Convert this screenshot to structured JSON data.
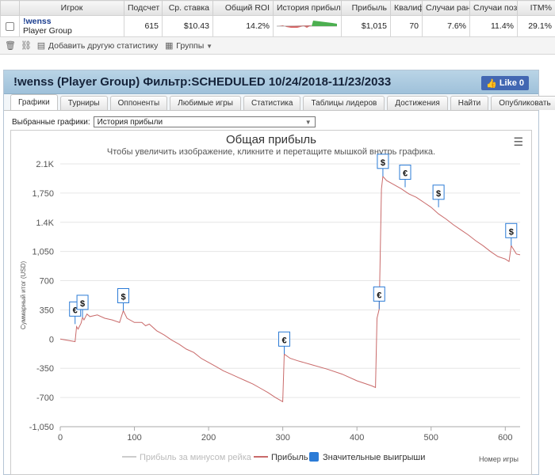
{
  "stats_table": {
    "headers": [
      "Игрок",
      "Подсчет",
      "Ср. ставка",
      "Общий ROI",
      "История прибыли",
      "Прибыль",
      "Квалиф",
      "Случаи ран",
      "Случаи позд",
      "ITM%"
    ],
    "row": {
      "player_name": "!wenss",
      "player_group": "Player Group",
      "count": "615",
      "avg_stake": "$10.43",
      "roi": "14.2%",
      "profit": "$1,015",
      "qualify": "70",
      "early": "7.6%",
      "late": "11.4%",
      "itm": "29.1%"
    }
  },
  "toolbar": {
    "add_stat_label": "Добавить другую статистику",
    "groups_label": "Группы"
  },
  "panel": {
    "title": "!wenss (Player Group) Фильтр:SCHEDULED 10/24/2018-11/23/2033",
    "like_label": "Like 0",
    "tabs": [
      "Графики",
      "Турниры",
      "Оппоненты",
      "Любимые игры",
      "Статистика",
      "Таблицы лидеров",
      "Достижения",
      "Найти",
      "Опубликовать"
    ],
    "active_tab": 0,
    "selector_label": "Выбранные графики:",
    "selector_value": "История прибыли"
  },
  "chart_data": {
    "type": "line",
    "title": "Общая прибыль",
    "subtitle": "Чтобы увеличить изображение, кликните и перетащите мышкой внутрь графика.",
    "ylabel": "Суммарный итог (USD)",
    "xlabel": "Номер игры",
    "xlim": [
      0,
      620
    ],
    "ylim": [
      -1050,
      2100
    ],
    "x_ticks": [
      "0",
      "100",
      "200",
      "300",
      "400",
      "500",
      "600"
    ],
    "y_ticks": [
      "-1,050",
      "-700",
      "-350",
      "0",
      "350",
      "700",
      "1,050",
      "1.4K",
      "1,750",
      "2.1K"
    ],
    "legend": [
      "Прибыль за минусом рейка",
      "Прибыль",
      "Значительные выигрыши"
    ],
    "colors": {
      "profit": "#c96a6a",
      "rake": "#cccccc",
      "wins": "#2b7bd6"
    },
    "series": [
      {
        "name": "Прибыль",
        "points": [
          [
            0,
            0
          ],
          [
            20,
            -30
          ],
          [
            22,
            150
          ],
          [
            24,
            120
          ],
          [
            28,
            190
          ],
          [
            30,
            260
          ],
          [
            32,
            230
          ],
          [
            36,
            300
          ],
          [
            40,
            270
          ],
          [
            50,
            290
          ],
          [
            60,
            250
          ],
          [
            70,
            230
          ],
          [
            80,
            200
          ],
          [
            85,
            340
          ],
          [
            90,
            250
          ],
          [
            100,
            200
          ],
          [
            110,
            200
          ],
          [
            115,
            160
          ],
          [
            120,
            180
          ],
          [
            130,
            100
          ],
          [
            140,
            50
          ],
          [
            150,
            -10
          ],
          [
            160,
            -60
          ],
          [
            170,
            -120
          ],
          [
            180,
            -160
          ],
          [
            190,
            -230
          ],
          [
            200,
            -280
          ],
          [
            210,
            -330
          ],
          [
            220,
            -380
          ],
          [
            230,
            -420
          ],
          [
            240,
            -460
          ],
          [
            250,
            -500
          ],
          [
            260,
            -540
          ],
          [
            270,
            -590
          ],
          [
            280,
            -640
          ],
          [
            290,
            -700
          ],
          [
            300,
            -750
          ],
          [
            302,
            -180
          ],
          [
            310,
            -230
          ],
          [
            320,
            -260
          ],
          [
            340,
            -310
          ],
          [
            360,
            -360
          ],
          [
            380,
            -420
          ],
          [
            400,
            -500
          ],
          [
            420,
            -560
          ],
          [
            425,
            -580
          ],
          [
            427,
            250
          ],
          [
            430,
            360
          ],
          [
            433,
            1800
          ],
          [
            435,
            1950
          ],
          [
            440,
            1900
          ],
          [
            450,
            1850
          ],
          [
            460,
            1800
          ],
          [
            470,
            1740
          ],
          [
            480,
            1700
          ],
          [
            490,
            1640
          ],
          [
            500,
            1580
          ],
          [
            510,
            1500
          ],
          [
            520,
            1440
          ],
          [
            530,
            1370
          ],
          [
            540,
            1310
          ],
          [
            550,
            1250
          ],
          [
            560,
            1180
          ],
          [
            570,
            1120
          ],
          [
            580,
            1050
          ],
          [
            590,
            990
          ],
          [
            600,
            960
          ],
          [
            605,
            930
          ],
          [
            608,
            1120
          ],
          [
            615,
            1020
          ],
          [
            620,
            1010
          ]
        ]
      }
    ],
    "markers": [
      {
        "x": 20,
        "y": 180,
        "symbol": "€"
      },
      {
        "x": 30,
        "y": 260,
        "symbol": "$"
      },
      {
        "x": 85,
        "y": 340,
        "symbol": "$"
      },
      {
        "x": 302,
        "y": -180,
        "symbol": "€"
      },
      {
        "x": 430,
        "y": 360,
        "symbol": "€"
      },
      {
        "x": 435,
        "y": 1950,
        "symbol": "$"
      },
      {
        "x": 465,
        "y": 1820,
        "symbol": "€"
      },
      {
        "x": 510,
        "y": 1580,
        "symbol": "$"
      },
      {
        "x": 608,
        "y": 1120,
        "symbol": "$"
      }
    ]
  }
}
